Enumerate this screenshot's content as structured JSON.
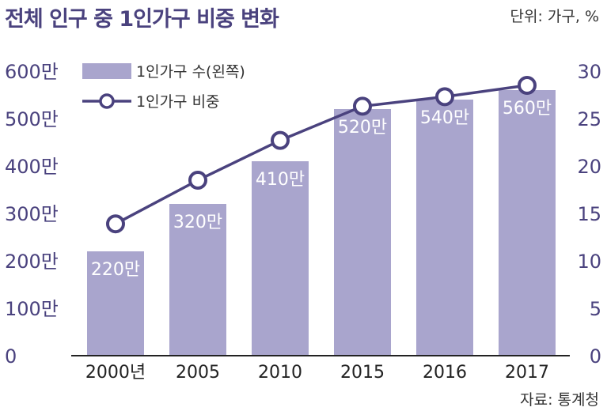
{
  "header": {
    "title": "전체 인구 중 1인가구 비중 변화",
    "unit": "단위: 가구, %"
  },
  "footer": {
    "source": "자료: 통계청"
  },
  "colors": {
    "bar": "#a9a5cd",
    "line": "#4a427e",
    "axis": "#222222",
    "text_accent": "#4a427e"
  },
  "chart_data": {
    "type": "bar",
    "title": "전체 인구 중 1인가구 비중 변화",
    "categories": [
      "2000년",
      "2005",
      "2010",
      "2015",
      "2016",
      "2017"
    ],
    "series": [
      {
        "name": "1인가구 수(왼쪽)",
        "type": "bar",
        "axis": "left",
        "values": [
          220,
          320,
          410,
          520,
          540,
          560
        ],
        "labels": [
          "220만",
          "320만",
          "410만",
          "520만",
          "540만",
          "560만"
        ]
      },
      {
        "name": "1인가구 비중",
        "type": "line",
        "axis": "right",
        "values": [
          13.9,
          18.5,
          22.7,
          26.3,
          27.3,
          28.5
        ]
      }
    ],
    "left_axis": {
      "range": [
        0,
        600
      ],
      "ticks": [
        0,
        100,
        200,
        300,
        400,
        500,
        600
      ],
      "tick_labels": [
        "0",
        "100만",
        "200만",
        "300만",
        "400만",
        "500만",
        "600만"
      ]
    },
    "right_axis": {
      "range": [
        0,
        30
      ],
      "ticks": [
        0,
        5,
        10,
        15,
        20,
        25,
        30
      ],
      "tick_labels": [
        "0",
        "5",
        "10",
        "15",
        "20",
        "25",
        "30"
      ]
    },
    "legend": {
      "position": "top-left",
      "entries": [
        "1인가구 수(왼쪽)",
        "1인가구 비중"
      ]
    }
  }
}
